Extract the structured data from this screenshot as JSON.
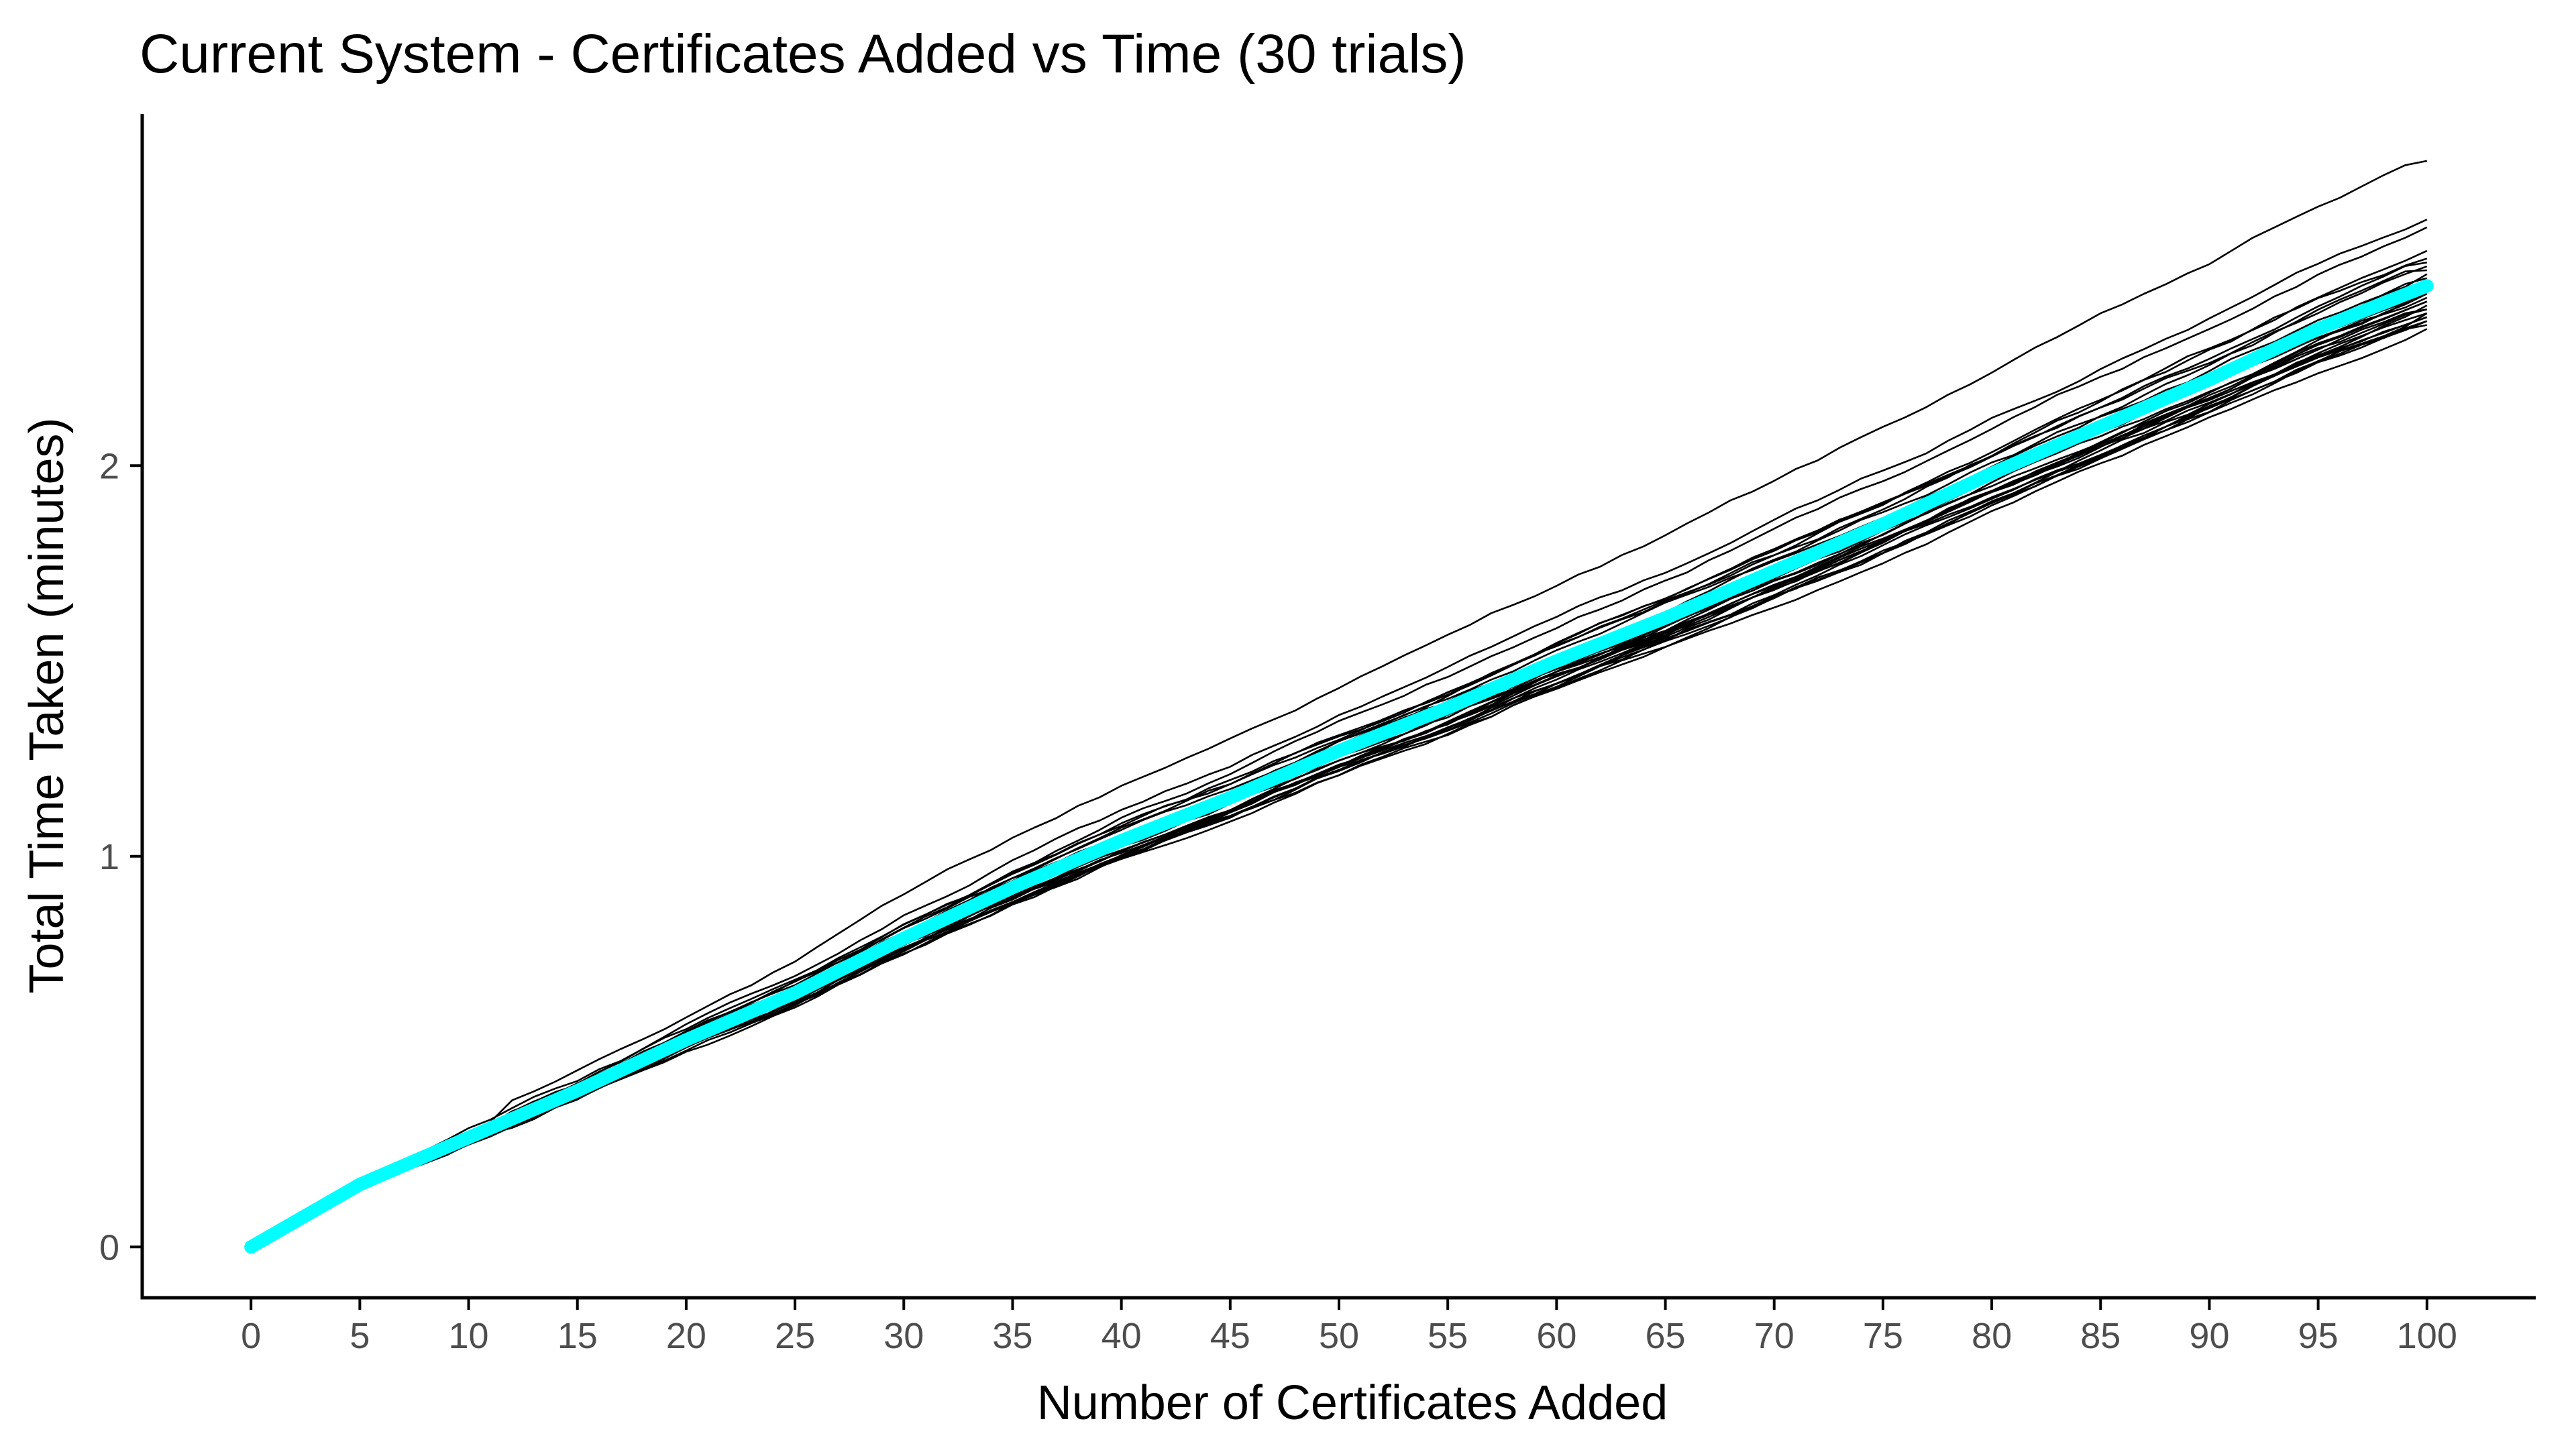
{
  "chart_data": {
    "type": "line",
    "title": "Current System - Certificates Added vs Time (30 trials)",
    "xlabel": "Number of Certificates Added",
    "ylabel": "Total Time Taken (minutes)",
    "xlim": [
      -5,
      105
    ],
    "ylim": [
      -0.13,
      2.9
    ],
    "x_ticks": [
      0,
      5,
      10,
      15,
      20,
      25,
      30,
      35,
      40,
      45,
      50,
      55,
      60,
      65,
      70,
      75,
      80,
      85,
      90,
      95,
      100
    ],
    "y_ticks": [
      0,
      1,
      2
    ],
    "grid": false,
    "legend": "none",
    "colors": {
      "trials": "#000000",
      "mean": "#00ffff"
    },
    "x": [
      0,
      5,
      10,
      15,
      20,
      25,
      30,
      35,
      40,
      45,
      50,
      55,
      60,
      65,
      70,
      75,
      80,
      85,
      90,
      95,
      100
    ],
    "mean_series": {
      "values": [
        0.0,
        0.16,
        0.28,
        0.4,
        0.53,
        0.65,
        0.79,
        0.92,
        1.04,
        1.15,
        1.27,
        1.38,
        1.5,
        1.61,
        1.73,
        1.85,
        1.98,
        2.1,
        2.22,
        2.35,
        2.46
      ]
    },
    "trial_endpoints": [
      2.78,
      2.63,
      2.61,
      2.55,
      2.53,
      2.52,
      2.51,
      2.5,
      2.49,
      2.48,
      2.47,
      2.46,
      2.46,
      2.45,
      2.44,
      2.44,
      2.43,
      2.42,
      2.42,
      2.41,
      2.4,
      2.4,
      2.39,
      2.39,
      2.38,
      2.38,
      2.37,
      2.37,
      2.36,
      2.35
    ]
  }
}
